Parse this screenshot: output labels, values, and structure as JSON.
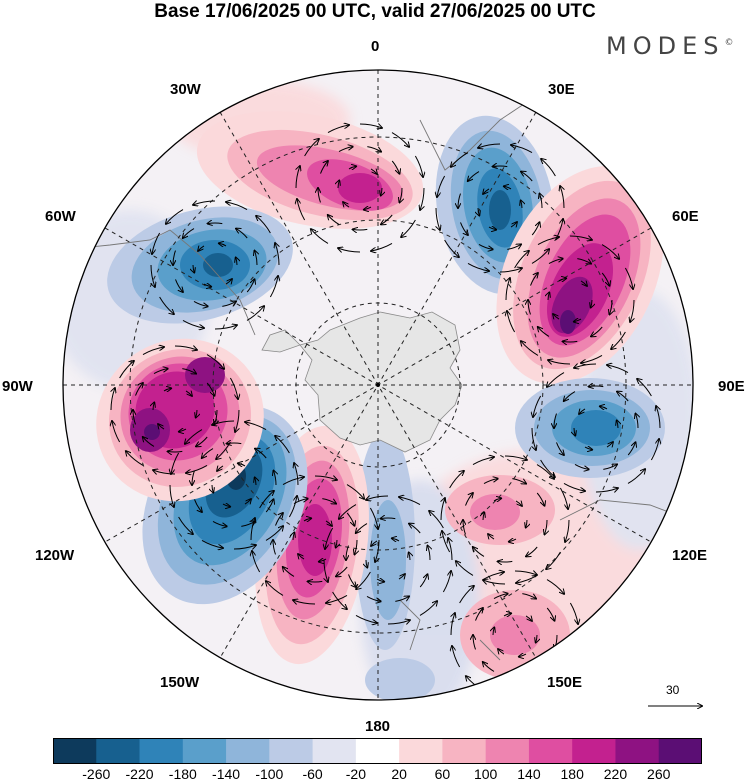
{
  "title": "Base 17/06/2025 00 UTC, valid 27/06/2025 00 UTC",
  "brand": "MODES",
  "brand_mark": "©",
  "longitude_labels": {
    "lon0": "0",
    "lon30e": "30E",
    "lon60e": "60E",
    "lon90e": "90E",
    "lon120e": "120E",
    "lon150e": "150E",
    "lon180": "180",
    "lon150w": "150W",
    "lon120w": "120W",
    "lon90w": "90W",
    "lon60w": "60W",
    "lon30w": "30W"
  },
  "reference_vector": {
    "label": "30"
  },
  "colorbar": {
    "ticks": [
      "-260",
      "-220",
      "-180",
      "-140",
      "-100",
      "-60",
      "-20",
      "20",
      "60",
      "100",
      "140",
      "180",
      "220",
      "260"
    ],
    "colors": [
      "#0d3a5c",
      "#17608f",
      "#2f83b8",
      "#5a9fcb",
      "#8fb5da",
      "#bccbe6",
      "#e2e4f1",
      "#ffffff",
      "#fbd9db",
      "#f7b4c2",
      "#ee84b0",
      "#df4ea1",
      "#c3218f",
      "#8e1282",
      "#5b0e74"
    ]
  },
  "map": {
    "projection": "south-polar-stereographic",
    "field": "geopotential height anomaly",
    "land_color": "#e6e6e6",
    "continent": "Antarctica",
    "anomaly_centers": [
      {
        "region": "South Atlantic 0–30W",
        "sign": "positive",
        "max_class": "220"
      },
      {
        "region": "South Atlantic 30E",
        "sign": "negative",
        "max_class": "-220"
      },
      {
        "region": "Indian Ocean 60E",
        "sign": "positive",
        "max_class": "260"
      },
      {
        "region": "Indian Ocean 90E",
        "sign": "negative",
        "max_class": "-180"
      },
      {
        "region": "South of Australia 130–150E",
        "sign": "positive",
        "max_class": "100"
      },
      {
        "region": "South Pacific 160W–180",
        "sign": "positive",
        "max_class": "220"
      },
      {
        "region": "South Pacific 120W",
        "sign": "negative",
        "max_class": "-220"
      },
      {
        "region": "Amundsen Sea 90–100W",
        "sign": "positive",
        "max_class": "260"
      },
      {
        "region": "South Atlantic 60W",
        "sign": "negative",
        "max_class": "-180"
      }
    ]
  }
}
